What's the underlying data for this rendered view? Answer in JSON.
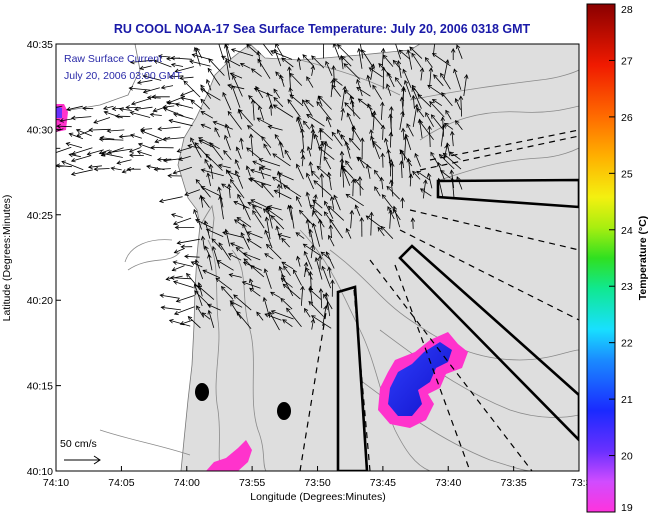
{
  "chart_data": {
    "type": "heatmap",
    "title": "RU COOL  NOAA-17  Sea Surface Temperature:  July 20, 2006 0318 GMT",
    "xlabel": "Longitude (Degrees:Minutes)",
    "ylabel": "Latitude (Degrees:Minutes)",
    "xlim": [
      -74.1667,
      -73.5
    ],
    "ylim": [
      40.1667,
      40.5833
    ],
    "x_ticks": [
      {
        "value": -74.1667,
        "label": "74:10"
      },
      {
        "value": -74.0833,
        "label": "74:05"
      },
      {
        "value": -74.0,
        "label": "74:00"
      },
      {
        "value": -73.9167,
        "label": "73:55"
      },
      {
        "value": -73.8333,
        "label": "73:50"
      },
      {
        "value": -73.75,
        "label": "73:45"
      },
      {
        "value": -73.6667,
        "label": "73:40"
      },
      {
        "value": -73.5833,
        "label": "73:35"
      },
      {
        "value": -73.5,
        "label": "73:3"
      }
    ],
    "y_ticks": [
      {
        "value": 40.1667,
        "label": "40:10"
      },
      {
        "value": 40.25,
        "label": "40:15"
      },
      {
        "value": 40.3333,
        "label": "40:20"
      },
      {
        "value": 40.4167,
        "label": "40:25"
      },
      {
        "value": 40.5,
        "label": "40:30"
      },
      {
        "value": 40.5833,
        "label": "40:35"
      }
    ],
    "colorbar": {
      "label": "Temperature (°C)",
      "range": [
        19,
        28
      ],
      "ticks": [
        "19",
        "20",
        "21",
        "22",
        "23",
        "24",
        "25",
        "26",
        "27",
        "28"
      ]
    },
    "annotations": [
      "Raw Surface Current",
      "July 20, 2006 03:00 GMT"
    ],
    "scale_label": "50 cm/s",
    "sst_patches_celsius": [
      {
        "lon": -73.75,
        "lat": 40.26,
        "temp_min": 19.5,
        "temp_max": 20.5
      },
      {
        "lon": -73.68,
        "lat": 40.28,
        "temp_min": 19.5,
        "temp_max": 20.5
      },
      {
        "lon": -73.95,
        "lat": 40.18,
        "temp_min": 19.0,
        "temp_max": 19.5
      },
      {
        "lon": -74.16,
        "lat": 40.52,
        "temp_min": 19.0,
        "temp_max": 19.8
      }
    ],
    "colors": {
      "title": "#1a1aa8",
      "annotation": "#2a2aa8",
      "land": "#ffffff",
      "ocean": "#dedede",
      "cold": "#2222ee",
      "warm_edge": "#ff33cc"
    }
  }
}
